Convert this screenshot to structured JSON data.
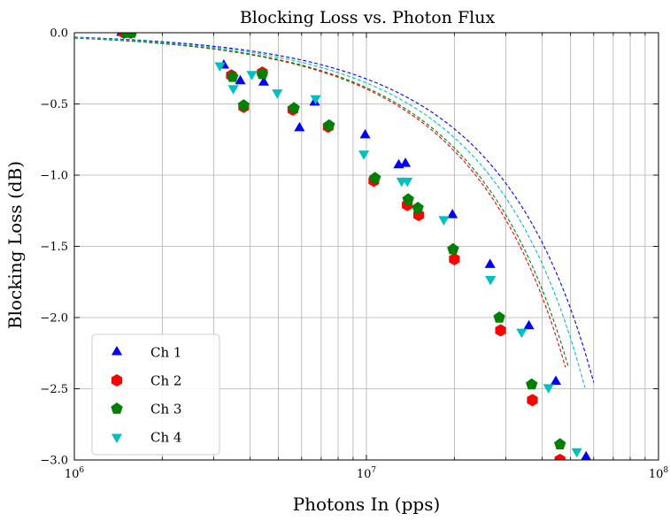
{
  "chart_data": {
    "type": "scatter",
    "title": "Blocking Loss vs. Photon Flux",
    "xlabel": "Photons In (pps)",
    "ylabel": "Blocking Loss (dB)",
    "xscale": "log",
    "xlim": [
      1000000,
      100000000
    ],
    "ylim": [
      -3.0,
      0.0
    ],
    "grid": true,
    "legend_position": "lower-left",
    "x_ticks": [
      {
        "value": 1000000,
        "base": "10",
        "exp": "6"
      },
      {
        "value": 10000000,
        "base": "10",
        "exp": "7"
      },
      {
        "value": 100000000,
        "base": "10",
        "exp": "8"
      }
    ],
    "y_ticks": [
      {
        "value": 0.0,
        "label": "0.0"
      },
      {
        "value": -0.5,
        "label": "−0.5"
      },
      {
        "value": -1.0,
        "label": "−1.0"
      },
      {
        "value": -1.5,
        "label": "−1.5"
      },
      {
        "value": -2.0,
        "label": "−2.0"
      },
      {
        "value": -2.5,
        "label": "−2.5"
      },
      {
        "value": -3.0,
        "label": "−3.0"
      }
    ],
    "series": [
      {
        "name": "Ch 1",
        "color": "#0000ff",
        "marker": "triangle-up",
        "points": [
          [
            1450000,
            0.0
          ],
          [
            1550000,
            0.0
          ],
          [
            3250000,
            -0.23
          ],
          [
            3700000,
            -0.34
          ],
          [
            4450000,
            -0.35
          ],
          [
            5900000,
            -0.67
          ],
          [
            6650000,
            -0.49
          ],
          [
            9900000,
            -0.72
          ],
          [
            12900000,
            -0.93
          ],
          [
            13600000,
            -0.92
          ],
          [
            19700000,
            -1.28
          ],
          [
            26500000,
            -1.63
          ],
          [
            36000000,
            -2.06
          ],
          [
            44500000,
            -2.45
          ],
          [
            56500000,
            -2.98
          ]
        ],
        "fit": {
          "dead_time_s": 7.2e-09,
          "ymax_x": 60000000
        }
      },
      {
        "name": "Ch 2",
        "color": "#ff0000",
        "marker": "hexagon",
        "points": [
          [
            1480000,
            0.0
          ],
          [
            1560000,
            0.0
          ],
          [
            3450000,
            -0.3
          ],
          [
            3800000,
            -0.52
          ],
          [
            4400000,
            -0.28
          ],
          [
            5600000,
            -0.54
          ],
          [
            7400000,
            -0.66
          ],
          [
            10600000,
            -1.04
          ],
          [
            13800000,
            -1.21
          ],
          [
            15100000,
            -1.28
          ],
          [
            20000000,
            -1.59
          ],
          [
            28800000,
            -2.09
          ],
          [
            37000000,
            -2.58
          ],
          [
            46000000,
            -3.0
          ]
        ],
        "fit": {
          "dead_time_s": 8.7e-09,
          "ymax_x": 48000000
        }
      },
      {
        "name": "Ch 3",
        "color": "#008000",
        "marker": "pentagon",
        "points": [
          [
            1500000,
            0.0
          ],
          [
            1570000,
            0.0
          ],
          [
            3480000,
            -0.31
          ],
          [
            3800000,
            -0.51
          ],
          [
            4400000,
            -0.29
          ],
          [
            5650000,
            -0.53
          ],
          [
            7450000,
            -0.65
          ],
          [
            10700000,
            -1.02
          ],
          [
            13900000,
            -1.17
          ],
          [
            15000000,
            -1.23
          ],
          [
            19800000,
            -1.52
          ],
          [
            28500000,
            -2.0
          ],
          [
            36800000,
            -2.47
          ],
          [
            46000000,
            -2.89
          ]
        ],
        "fit": {
          "dead_time_s": 8.5e-09,
          "ymax_x": 49000000
        }
      },
      {
        "name": "Ch 4",
        "color": "#00bfbf",
        "marker": "triangle-down",
        "points": [
          [
            3150000,
            -0.23
          ],
          [
            3500000,
            -0.39
          ],
          [
            4050000,
            -0.29
          ],
          [
            4950000,
            -0.42
          ],
          [
            6700000,
            -0.46
          ],
          [
            9800000,
            -0.85
          ],
          [
            13200000,
            -1.04
          ],
          [
            13800000,
            -1.04
          ],
          [
            18400000,
            -1.31
          ],
          [
            26600000,
            -1.73
          ],
          [
            34000000,
            -2.1
          ],
          [
            42000000,
            -2.49
          ],
          [
            52500000,
            -2.94
          ]
        ],
        "fit": {
          "dead_time_s": 7.8e-09,
          "ymax_x": 56000000
        }
      }
    ]
  }
}
